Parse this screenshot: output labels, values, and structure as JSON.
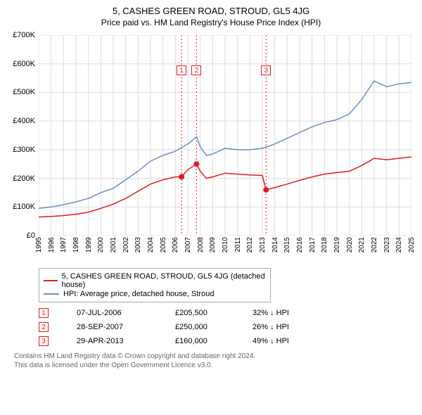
{
  "title": "5, CASHES GREEN ROAD, STROUD, GL5 4JG",
  "subtitle": "Price paid vs. HM Land Registry's House Price Index (HPI)",
  "chart": {
    "type": "line",
    "background_color": "#ffffff",
    "grid_color": "#dddddd",
    "axis_color": "#666666",
    "ylim": [
      0,
      700000
    ],
    "ytick_step": 100000,
    "ytick_labels": [
      "£0",
      "£100K",
      "£200K",
      "£300K",
      "£400K",
      "£500K",
      "£600K",
      "£700K"
    ],
    "xlim": [
      1995,
      2025
    ],
    "xtick_labels": [
      "1995",
      "1996",
      "1997",
      "1998",
      "1999",
      "2000",
      "2001",
      "2002",
      "2003",
      "2004",
      "2005",
      "2006",
      "2007",
      "2008",
      "2009",
      "2010",
      "2011",
      "2012",
      "2013",
      "2014",
      "2015",
      "2016",
      "2017",
      "2018",
      "2019",
      "2020",
      "2021",
      "2022",
      "2023",
      "2024",
      "2025"
    ],
    "series": [
      {
        "name": "price_paid",
        "label": "5, CASHES GREEN ROAD, STROUD, GL5 4JG (detached house)",
        "color": "#e41a1c",
        "line_width": 1.5,
        "points": [
          [
            1995,
            65000
          ],
          [
            1996,
            67000
          ],
          [
            1997,
            70000
          ],
          [
            1998,
            75000
          ],
          [
            1999,
            82000
          ],
          [
            2000,
            95000
          ],
          [
            2001,
            110000
          ],
          [
            2002,
            130000
          ],
          [
            2003,
            155000
          ],
          [
            2004,
            180000
          ],
          [
            2005,
            195000
          ],
          [
            2006,
            205000
          ],
          [
            2006.5,
            205500
          ],
          [
            2007,
            230000
          ],
          [
            2007.7,
            250000
          ],
          [
            2008,
            225000
          ],
          [
            2008.5,
            200000
          ],
          [
            2009,
            205000
          ],
          [
            2010,
            218000
          ],
          [
            2011,
            215000
          ],
          [
            2012,
            212000
          ],
          [
            2013,
            210000
          ],
          [
            2013.3,
            160000
          ],
          [
            2014,
            168000
          ],
          [
            2015,
            180000
          ],
          [
            2016,
            193000
          ],
          [
            2017,
            205000
          ],
          [
            2018,
            215000
          ],
          [
            2019,
            220000
          ],
          [
            2020,
            225000
          ],
          [
            2021,
            245000
          ],
          [
            2022,
            270000
          ],
          [
            2023,
            265000
          ],
          [
            2024,
            270000
          ],
          [
            2025,
            275000
          ]
        ]
      },
      {
        "name": "hpi",
        "label": "HPI: Average price, detached house, Stroud",
        "color": "#6a8fc5",
        "line_width": 1.5,
        "points": [
          [
            1995,
            95000
          ],
          [
            1996,
            100000
          ],
          [
            1997,
            108000
          ],
          [
            1998,
            118000
          ],
          [
            1999,
            130000
          ],
          [
            2000,
            150000
          ],
          [
            2001,
            165000
          ],
          [
            2002,
            195000
          ],
          [
            2003,
            225000
          ],
          [
            2004,
            260000
          ],
          [
            2005,
            280000
          ],
          [
            2006,
            295000
          ],
          [
            2007,
            320000
          ],
          [
            2007.7,
            345000
          ],
          [
            2008,
            310000
          ],
          [
            2008.5,
            280000
          ],
          [
            2009,
            285000
          ],
          [
            2010,
            305000
          ],
          [
            2011,
            300000
          ],
          [
            2012,
            300000
          ],
          [
            2013,
            305000
          ],
          [
            2014,
            320000
          ],
          [
            2015,
            340000
          ],
          [
            2016,
            360000
          ],
          [
            2017,
            380000
          ],
          [
            2018,
            395000
          ],
          [
            2019,
            405000
          ],
          [
            2020,
            425000
          ],
          [
            2021,
            475000
          ],
          [
            2022,
            540000
          ],
          [
            2023,
            520000
          ],
          [
            2024,
            530000
          ],
          [
            2025,
            535000
          ]
        ]
      }
    ],
    "events": [
      {
        "num": "1",
        "x": 2006.5,
        "date": "07-JUL-2006",
        "price": "£205,500",
        "delta": "32% ↓ HPI",
        "dot_y": 205500
      },
      {
        "num": "2",
        "x": 2007.7,
        "date": "28-SEP-2007",
        "price": "£250,000",
        "delta": "26% ↓ HPI",
        "dot_y": 250000
      },
      {
        "num": "3",
        "x": 2013.3,
        "date": "29-APR-2013",
        "price": "£160,000",
        "delta": "49% ↓ HPI",
        "dot_y": 160000
      }
    ],
    "event_line_color": "#e41a1c",
    "event_box_border": "#e41a1c",
    "event_box_bg": "#ffffff",
    "dot_color": "#e41a1c",
    "dot_radius": 4
  },
  "legend_border_color": "#aaaaaa",
  "footnote_line1": "Contains HM Land Registry data © Crown copyright and database right 2024.",
  "footnote_line2": "This data is licensed under the Open Government Licence v3.0."
}
